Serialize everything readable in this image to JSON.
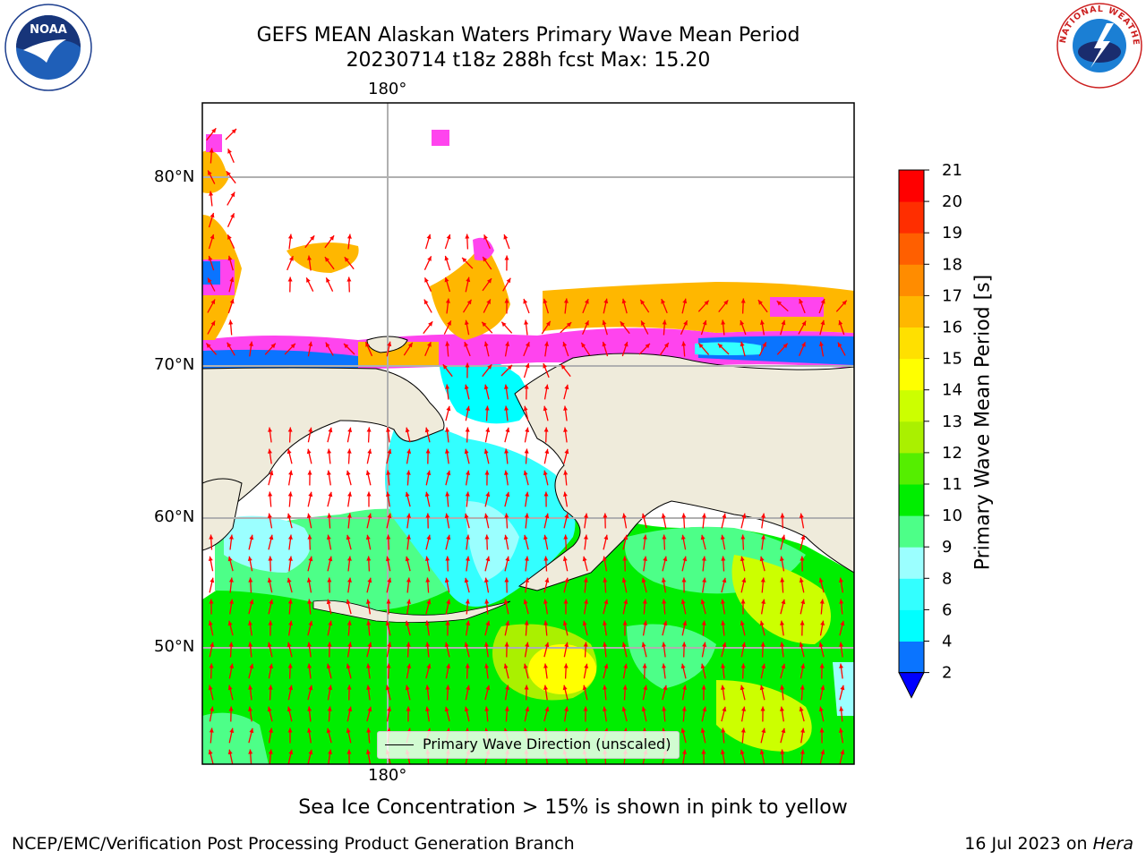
{
  "title": {
    "line1": "GEFS MEAN Alaskan Waters Primary Wave Mean Period",
    "line2": "20230714 t18z 288h fcst   Max: 15.20"
  },
  "logos": {
    "left": {
      "icon": "noaa-logo-icon",
      "text": "NOAA"
    },
    "right": {
      "icon": "national-weather-service-logo-icon",
      "ring_text": "NATIONAL WEATHER SERVICE"
    }
  },
  "map": {
    "projection": "polar-stereographic",
    "lon_label_top": "180°",
    "lon_label_bottom": "180°",
    "lat_labels": [
      "80°N",
      "70°N",
      "60°N",
      "50°N"
    ],
    "land_color": "#efebdb",
    "ocean_no_data_color": "#ffffff",
    "gridlines": true,
    "legend": {
      "label": "Primary Wave Direction (unscaled)",
      "position": "bottom-center"
    },
    "arrow_color": "#ff0000",
    "dominant_direction": "north"
  },
  "colorbar": {
    "label": "Primary Wave Mean Period [s]",
    "ticks": [
      "21",
      "20",
      "19",
      "18",
      "17",
      "16",
      "15",
      "14",
      "13",
      "12",
      "11",
      "10",
      "9",
      "8",
      "6",
      "4",
      "2"
    ],
    "levels": [
      2,
      4,
      6,
      8,
      9,
      10,
      11,
      12,
      13,
      14,
      15,
      16,
      17,
      18,
      19,
      20,
      21
    ],
    "colors": [
      "#0a74ff",
      "#00ffff",
      "#33ffff",
      "#9bffff",
      "#4dff88",
      "#00ee00",
      "#55ee00",
      "#aaf000",
      "#ccff00",
      "#ffff00",
      "#ffe000",
      "#ffb700",
      "#ff8c00",
      "#ff5f00",
      "#ff2e00",
      "#ff0000"
    ],
    "under_color": "#0000ff"
  },
  "ice_note": "Sea Ice Concentration > 15% is shown in pink to yellow",
  "footer": {
    "left": "NCEP/EMC/Verification Post Processing Product Generation Branch",
    "right_date": "16 Jul 2023 on ",
    "right_machine": "Hera"
  }
}
